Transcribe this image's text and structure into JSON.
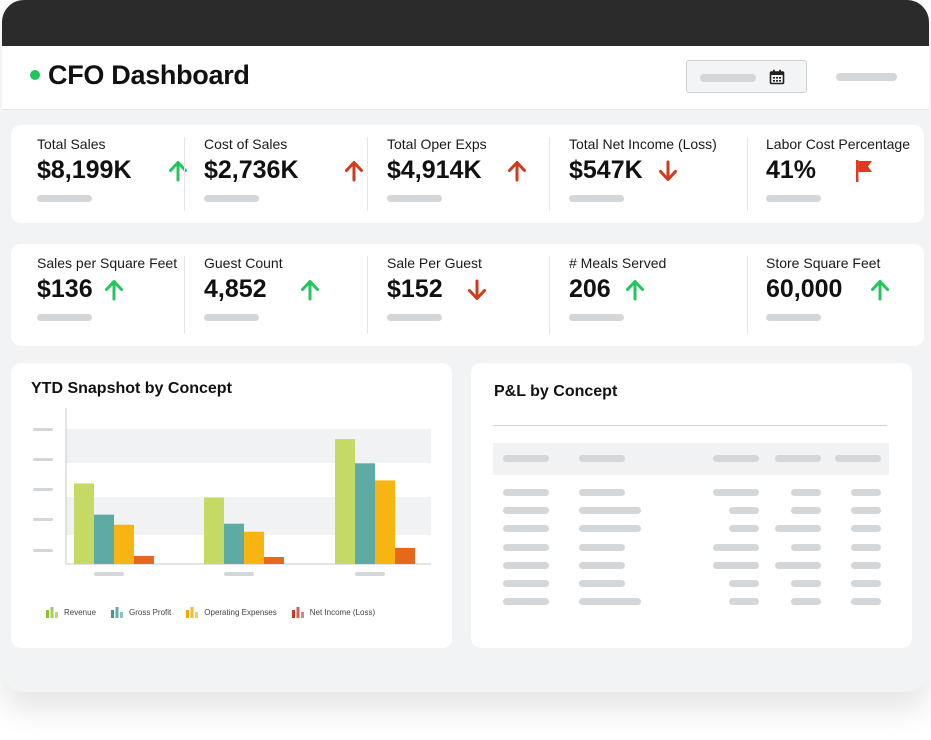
{
  "header": {
    "title": "CFO Dashboard"
  },
  "kpi_rows": [
    [
      {
        "label": "Total Sales",
        "value": "$8,199K",
        "trend": "up",
        "color": "#22c55e"
      },
      {
        "label": "Cost of Sales",
        "value": "$2,736K",
        "trend": "up",
        "color": "#d13a1c"
      },
      {
        "label": "Total Oper Exps",
        "value": "$4,914K",
        "trend": "up",
        "color": "#d13a1c"
      },
      {
        "label": "Total Net Income (Loss)",
        "value": "$547K",
        "trend": "down",
        "color": "#d13a1c"
      },
      {
        "label": "Labor Cost Percentage",
        "value": "41%",
        "trend": "flag",
        "color": "#e0391f"
      }
    ],
    [
      {
        "label": "Sales per Square Feet",
        "value": "$136",
        "trend": "up",
        "color": "#22c55e"
      },
      {
        "label": "Guest Count",
        "value": "4,852",
        "trend": "up",
        "color": "#22c55e"
      },
      {
        "label": "Sale Per Guest",
        "value": "$152",
        "trend": "down",
        "color": "#d13a1c"
      },
      {
        "label": "# Meals Served",
        "value": "206",
        "trend": "up",
        "color": "#22c55e"
      },
      {
        "label": "Store Square Feet",
        "value": "60,000",
        "trend": "up",
        "color": "#22c55e"
      }
    ]
  ],
  "ytd": {
    "title": "YTD Snapshot by Concept"
  },
  "pnl": {
    "title": "P&L by Concept"
  },
  "chart_data": {
    "type": "bar",
    "title": "YTD Snapshot by Concept",
    "categories": [
      "",
      "",
      ""
    ],
    "ylim": [
      0,
      140
    ],
    "grid": true,
    "legend_position": "bottom",
    "series": [
      {
        "name": "Revenue",
        "color": "#c4da64",
        "values": [
          80,
          66,
          124
        ]
      },
      {
        "name": "Gross Profit",
        "color": "#5eaaa4",
        "values": [
          49,
          40,
          100
        ]
      },
      {
        "name": "Operating Expenses",
        "color": "#f8b410",
        "values": [
          39,
          32,
          83
        ]
      },
      {
        "name": "Net Income (Loss)",
        "color": "#e6681c",
        "values": [
          8,
          7,
          16
        ]
      }
    ]
  }
}
